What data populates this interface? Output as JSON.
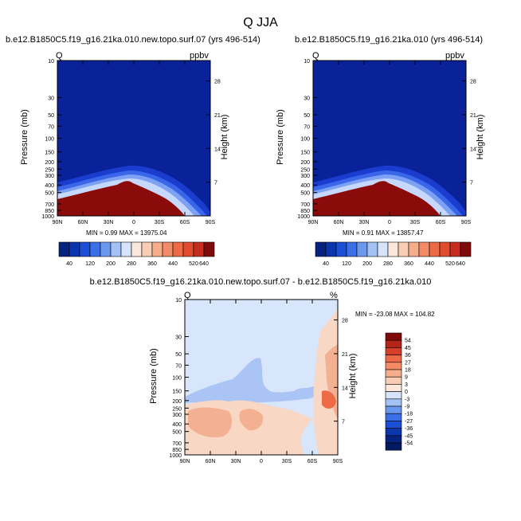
{
  "title": "Q JJA",
  "colors": {
    "upper": "#0a2299",
    "band1": "#1a3dd0",
    "band2": "#3a66ea",
    "band3": "#7ea2f3",
    "band4": "#c6d8fb",
    "surface": "#8b0a0a",
    "diff_bg": "#d8e6fb",
    "diff_blue": "#aac4f6",
    "diff_orange1": "#f8d8c4",
    "diff_orange2": "#f4b092"
  },
  "panels": [
    {
      "subtitle": "b.e12.B1850C5.f19_g16.21ka.010.new.topo.surf.07 (yrs 496-514)",
      "var_label": "Q",
      "unit_label": "ppbv",
      "stats": "MIN =  0.99  MAX = 13975.04"
    },
    {
      "subtitle": "b.e12.B1850C5.f19_g16.21ka.010 (yrs 496-514)",
      "var_label": "Q",
      "unit_label": "ppbv",
      "stats": "MIN =  0.91  MAX = 13857.47"
    }
  ],
  "diff_panel": {
    "subtitle": "b.e12.B1850C5.f19_g16.21ka.010.new.topo.surf.07 - b.e12.B1850C5.f19_g16.21ka.010",
    "var_label": "Q",
    "unit_label": "%",
    "stats": "MIN = -23.08  MAX = 104.82"
  },
  "colorbar_horizontal": {
    "labels": [
      "40",
      "120",
      "200",
      "280",
      "360",
      "440",
      "520",
      "640"
    ],
    "colors": [
      "#06237f",
      "#0b35ad",
      "#1a4fd6",
      "#3b6fe6",
      "#6b98ef",
      "#a3c1f5",
      "#d5e3fb",
      "#fbe8da",
      "#f9cdb3",
      "#f6ad8c",
      "#f28b66",
      "#ec6a45",
      "#e14c2d",
      "#c42d1f",
      "#7f0a0a"
    ]
  },
  "colorbar_vertical": {
    "labels": [
      "54",
      "45",
      "36",
      "27",
      "18",
      "9",
      "3",
      "0",
      "-3",
      "-9",
      "-18",
      "-27",
      "-36",
      "-45",
      "-54"
    ],
    "colors": [
      "#7f0a0a",
      "#b32518",
      "#d6402a",
      "#ec6a45",
      "#f28b66",
      "#f6ad8c",
      "#f9cdb3",
      "#fbe8da",
      "#d5e3fb",
      "#a3c1f5",
      "#6b98ef",
      "#3b6fe6",
      "#1a4fd6",
      "#0b35ad",
      "#06237f",
      "#041a60"
    ]
  },
  "chart_data": {
    "type": "heatmap",
    "x_ticks": [
      "90N",
      "60N",
      "30N",
      "0",
      "30S",
      "60S",
      "90S"
    ],
    "x_values": [
      90,
      60,
      30,
      0,
      -30,
      -60,
      -90
    ],
    "y_label": "Pressure (mb)",
    "y_ticks": [
      "10",
      "30",
      "50",
      "70",
      "100",
      "150",
      "200",
      "250",
      "300",
      "400",
      "500",
      "700",
      "850",
      "1000"
    ],
    "y_values": [
      10,
      30,
      50,
      70,
      100,
      150,
      200,
      250,
      300,
      400,
      500,
      700,
      850,
      1000
    ],
    "y_scale": "log",
    "y_range": [
      10,
      1000
    ],
    "y2_label": "Height (km)",
    "y2_ticks": [
      "28",
      "21",
      "14",
      "7"
    ],
    "y2_values": [
      28,
      21,
      14,
      7
    ],
    "panels": [
      {
        "name": "b.e12.B1850C5.f19_g16.21ka.010.new.topo.surf.07 (yrs 496-514)",
        "min": 0.99,
        "max": 13975.04,
        "units": "ppbv"
      },
      {
        "name": "b.e12.B1850C5.f19_g16.21ka.010 (yrs 496-514)",
        "min": 0.91,
        "max": 13857.47,
        "units": "ppbv"
      },
      {
        "name": "b.e12.B1850C5.f19_g16.21ka.010.new.topo.surf.07 - b.e12.B1850C5.f19_g16.21ka.010",
        "min": -23.08,
        "max": 104.82,
        "units": "%"
      }
    ],
    "levels_abs": [
      40,
      120,
      200,
      280,
      360,
      440,
      520,
      640
    ],
    "levels_diff": [
      54,
      45,
      36,
      27,
      18,
      9,
      3,
      0,
      -3,
      -9,
      -18,
      -27,
      -36,
      -45,
      -54
    ]
  }
}
